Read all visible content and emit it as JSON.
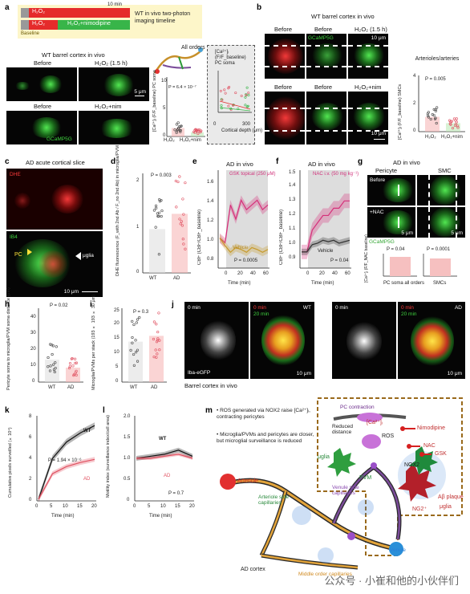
{
  "panels": {
    "a": {
      "label": "a",
      "timeline": {
        "bar1_label": "H₂O₂",
        "bar1_time": "10 min",
        "bar2_label": "H₂O₂",
        "bar2_label2": "H₂O₂+nimodipine",
        "baseline": "Baseline",
        "note": "WT in vivo two-photon imaging timeline"
      },
      "title": "WT barrel cortex in vivo",
      "img_labels": {
        "before": "Before",
        "h2o2": "H₂O₂ (1.5 h)",
        "before2": "Before",
        "h2o2nim": "H₂O₂+nim"
      },
      "gcamp": "GCaMP5G",
      "scale": "5 μm",
      "diagram_label": "All orders",
      "chart_ylabel": "[Ca²⁺]ᵢ (F/F_baseline) PC soma",
      "chart_stat": "P = 6.4 × 10⁻⁷",
      "chart_x": [
        "H₂O₂",
        "H₂O₂+nim"
      ],
      "inset_title": "[Ca²⁺]ᵢ (F/F_baseline) PC soma",
      "inset_xlabel": "Cortical depth (μm)",
      "inset_x_ticks": [
        "0",
        "300"
      ],
      "inset_y_ticks": [
        "0",
        "5",
        "10"
      ],
      "chart_y_ticks": [
        "0",
        "5",
        "10"
      ]
    },
    "b": {
      "label": "b",
      "title": "WT barrel cortex in vivo",
      "img_labels": {
        "before": "Before",
        "gcamp": "GCaMP5G",
        "h2o2": "H₂O₂ (1.5 h)",
        "before2": "Before",
        "before3": "Before",
        "h2o2nim": "H₂O₂+nim"
      },
      "scale1": "10 μm",
      "scale2": "10 μm",
      "side_title": "Arterioles/arteries",
      "chart_ylabel": "[Ca²⁺]ᵢ (F/F_baseline) SMCs",
      "chart_stat": "P = 0.005",
      "chart_x": [
        "H₂O₂",
        "H₂O₂+nim"
      ],
      "chart_y_ticks": [
        "0",
        "2",
        "4"
      ]
    },
    "c": {
      "label": "c",
      "title": "AD acute cortical slice",
      "dhe": "DHE",
      "ib4": "IB4",
      "pc": "PC",
      "microglia": "μglia",
      "scale": "10 μm"
    },
    "d": {
      "label": "d",
      "ylabel": "DHE fluorescence (F_with 2nd Ab / F_no 2nd Ab) in microglia/PVM",
      "stat": "P = 0.003",
      "x": [
        "WT",
        "AD"
      ],
      "y_ticks": [
        "0",
        "1",
        "2"
      ]
    },
    "e": {
      "label": "e",
      "title": "AD in vivo",
      "treat": "GSK topical (250 μM)",
      "vehicle": "Vehicle",
      "stat": "P = 0.0005",
      "ylabel": "CBF (CBF/CBF_baseline)",
      "xlabel": "Time (min)",
      "x_ticks": [
        "0",
        "20",
        "40",
        "60"
      ],
      "y_ticks": [
        "0.8",
        "1.0",
        "1.2",
        "1.4",
        "1.6"
      ]
    },
    "f": {
      "label": "f",
      "title": "AD in vivo",
      "treat": "NAC i.v. (50 mg kg⁻¹)",
      "vehicle": "Vehicle",
      "stat": "P = 0.04",
      "ylabel": "CBF (CBF/CBF_baseline)",
      "xlabel": "Time (min)",
      "x_ticks": [
        "0",
        "20",
        "40",
        "60"
      ],
      "y_ticks": [
        "0.9",
        "1.0",
        "1.1",
        "1.2",
        "1.3",
        "1.4",
        "1.5"
      ]
    },
    "g": {
      "label": "g",
      "title": "AD in vivo",
      "pericyte": "Pericyte",
      "smc": "SMC",
      "before": "Before",
      "nac": "+NAC",
      "gcamp": "GCaMP5G",
      "scale": "5 μm",
      "stat1": "P = 0.04",
      "stat2": "P = 0.0001",
      "x1": "PC soma all orders",
      "x2": "SMCs",
      "ylabel": "[Ca²⁺]ᵢ (F/F_NAC baseline)"
    },
    "h": {
      "label": "h",
      "ylabel": "Pericyte soma to microglia/PVM soma distance (μm)",
      "stat": "P = 0.02",
      "x": [
        "WT",
        "AD"
      ],
      "y_ticks": [
        "0",
        "10",
        "20",
        "30",
        "40"
      ]
    },
    "i": {
      "label": "i",
      "ylabel": "Microglia/PVMs per stack (193 × 193 × 30 μm)",
      "stat": "P = 0.3",
      "x": [
        "WT",
        "AD"
      ],
      "y_ticks": [
        "0",
        "5",
        "10",
        "15",
        "20",
        "25"
      ]
    },
    "j": {
      "label": "j",
      "t0": "0 min",
      "t0b": "0 min",
      "t20": "20 min",
      "t0c": "0 min",
      "t0d": "0 min",
      "t20b": "20 min",
      "wt": "WT",
      "ad": "AD",
      "iba": "Iba-eGFP",
      "scale1": "10 μm",
      "scale2": "10 μm",
      "caption": "Barrel cortex in vivo"
    },
    "k": {
      "label": "k",
      "ylabel": "Cumulative pixels surveilled (×10⁴)",
      "xlabel": "Time (min)",
      "stat": "P = 1.94 × 10⁻⁶",
      "wt": "WT",
      "ad": "AD",
      "x_ticks": [
        "0",
        "5",
        "10",
        "15",
        "20"
      ],
      "y_ticks": [
        "0",
        "2",
        "4",
        "6",
        "8"
      ]
    },
    "l": {
      "label": "l",
      "ylabel": "Motility index (surveillance index/cell area)",
      "xlabel": "Time (min)",
      "stat": "P = 0.7",
      "wt": "WT",
      "ad": "AD",
      "x_ticks": [
        "0",
        "5",
        "10",
        "15",
        "20"
      ],
      "y_ticks": [
        "0",
        "0.5",
        "1.0",
        "1.5",
        "2.0"
      ]
    },
    "m": {
      "label": "m",
      "bullet1": "ROS generated via NOX2 raise [Ca²⁺]ᵢ, contracting pericytes",
      "bullet2": "Microglia/PVMs and pericytes are closer, but microglial surveillance is reduced",
      "pc_contraction": "PC contraction",
      "reduced_distance": "Reduced distance",
      "ca": "[Ca²⁺]ᵢ",
      "ros": "ROS",
      "nox2": "NOX2",
      "microglia": "μglia",
      "pvm": "PVM",
      "nimodipine": "Nimodipine",
      "nac": "NAC",
      "gsk": "GSK",
      "plaque": "Aβ plaque",
      "ng2": "NG2⁺",
      "microglia2": "μglia",
      "arteriole": "Arteriole",
      "art_side": "Arteriole side capillaries",
      "venule_side": "Venule side capillaries",
      "venule": "Venule",
      "ad_cortex": "AD cortex",
      "middle": "Middle order capillaries"
    }
  },
  "chart_data": [
    {
      "type": "scatter",
      "name_ref": "a",
      "categories": [
        "H₂O₂",
        "H₂O₂+nim"
      ],
      "series": [
        {
          "values": [
            1.8,
            0.9
          ]
        }
      ],
      "ylim": [
        0,
        12
      ]
    },
    {
      "type": "scatter",
      "name_ref": "b",
      "categories": [
        "H₂O₂",
        "H₂O₂+nim"
      ],
      "series": [
        {
          "values": [
            1.4,
            0.8
          ]
        }
      ],
      "ylim": [
        0,
        5
      ]
    },
    {
      "type": "bar",
      "name_ref": "d",
      "categories": [
        "WT",
        "AD"
      ],
      "values": [
        1.0,
        1.35
      ],
      "ylim": [
        0,
        2.2
      ]
    },
    {
      "type": "line",
      "name_ref": "e",
      "x": [
        -10,
        0,
        10,
        20,
        30,
        40,
        50,
        60,
        70,
        80
      ],
      "series": [
        {
          "name": "GSK topical (250 μM)",
          "values": [
            1.0,
            0.95,
            1.35,
            1.2,
            1.4,
            1.3,
            1.35,
            1.4,
            1.3,
            1.35
          ]
        },
        {
          "name": "Vehicle",
          "values": [
            1.0,
            0.92,
            0.85,
            0.9,
            0.88,
            0.85,
            0.9,
            0.88,
            0.85,
            0.88
          ]
        }
      ],
      "ylim": [
        0.7,
        1.7
      ]
    },
    {
      "type": "line",
      "name_ref": "f",
      "x": [
        -10,
        0,
        10,
        20,
        30,
        40,
        50,
        60,
        70,
        80
      ],
      "series": [
        {
          "name": "NAC i.v. (50 mg kg⁻¹)",
          "values": [
            1.0,
            1.0,
            1.15,
            1.2,
            1.25,
            1.25,
            1.3,
            1.3,
            1.35,
            1.35
          ]
        },
        {
          "name": "Vehicle",
          "values": [
            1.0,
            1.0,
            1.05,
            1.06,
            1.08,
            1.07,
            1.08,
            1.06,
            1.07,
            1.08
          ]
        }
      ],
      "ylim": [
        0.9,
        1.55
      ]
    },
    {
      "type": "bar",
      "name_ref": "h",
      "categories": [
        "WT",
        "AD"
      ],
      "values": [
        14,
        9
      ],
      "ylim": [
        0,
        45
      ]
    },
    {
      "type": "bar",
      "name_ref": "i",
      "categories": [
        "WT",
        "AD"
      ],
      "values": [
        14,
        16
      ],
      "ylim": [
        0,
        25
      ]
    },
    {
      "type": "line",
      "name_ref": "k",
      "x": [
        0,
        5,
        10,
        15,
        20
      ],
      "series": [
        {
          "name": "WT",
          "values": [
            0,
            4.0,
            5.6,
            6.5,
            7.2
          ]
        },
        {
          "name": "AD",
          "values": [
            0,
            2.5,
            3.2,
            3.6,
            3.9
          ]
        }
      ],
      "ylim": [
        0,
        8
      ]
    },
    {
      "type": "line",
      "name_ref": "l",
      "x": [
        0,
        5,
        10,
        15,
        20
      ],
      "series": [
        {
          "name": "WT",
          "values": [
            1.0,
            1.05,
            1.1,
            1.2,
            1.05
          ]
        },
        {
          "name": "AD",
          "values": [
            1.0,
            1.0,
            1.05,
            1.1,
            1.0
          ]
        }
      ],
      "ylim": [
        0,
        2.0
      ]
    }
  ],
  "watermark": "公众号 · 小崔和他的小伙伴们"
}
